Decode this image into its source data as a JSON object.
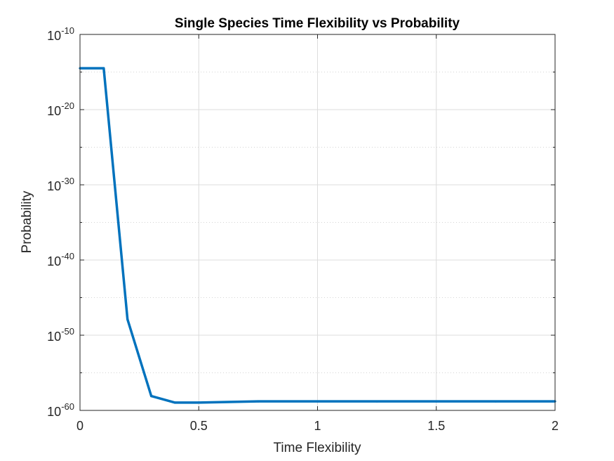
{
  "chart_data": {
    "type": "line",
    "title": "Single Species Time Flexibility vs Probability",
    "xlabel": "Time Flexibility",
    "ylabel": "Probability",
    "xlim": [
      0,
      2
    ],
    "ylim": [
      1e-60,
      1e-10
    ],
    "yscale": "log",
    "grid": true,
    "x_ticks": [
      {
        "value": 0,
        "label": "0"
      },
      {
        "value": 0.5,
        "label": "0.5"
      },
      {
        "value": 1,
        "label": "1"
      },
      {
        "value": 1.5,
        "label": "1.5"
      },
      {
        "value": 2,
        "label": "2"
      }
    ],
    "y_ticks": [
      {
        "value": 1e-60,
        "base": "10",
        "exp": "-60"
      },
      {
        "value": 1e-50,
        "base": "10",
        "exp": "-50"
      },
      {
        "value": 1e-40,
        "base": "10",
        "exp": "-40"
      },
      {
        "value": 1e-30,
        "base": "10",
        "exp": "-30"
      },
      {
        "value": 1e-20,
        "base": "10",
        "exp": "-20"
      },
      {
        "value": 1e-10,
        "base": "10",
        "exp": "-10"
      }
    ],
    "y_minor_grid": [
      1e-55,
      1e-45,
      1e-35,
      1e-25,
      1e-15
    ],
    "series": [
      {
        "color": "#0072BD",
        "x": [
          0,
          0.1,
          0.2,
          0.3,
          0.4,
          0.5,
          0.75,
          1,
          1.25,
          1.5,
          1.75,
          2
        ],
        "y": [
          3.2e-15,
          3.2e-15,
          1.3e-48,
          8e-59,
          1.1e-59,
          1.1e-59,
          1.6e-59,
          1.6e-59,
          1.6e-59,
          1.6e-59,
          1.6e-59,
          1.6e-59
        ]
      }
    ]
  }
}
